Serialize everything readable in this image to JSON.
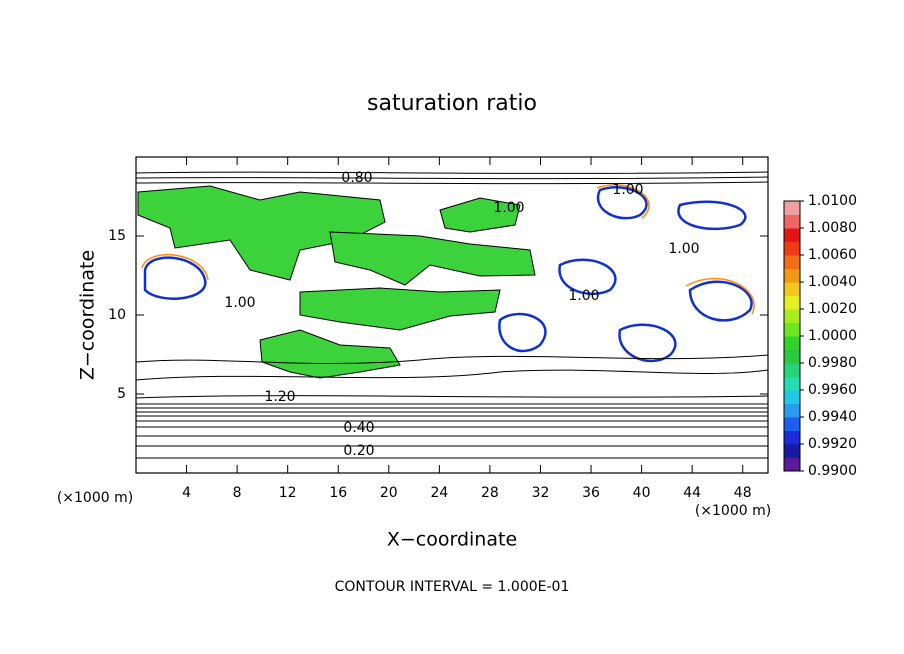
{
  "chart_data": {
    "type": "contour",
    "title": "saturation ratio",
    "x_label": "X−coordinate",
    "y_label": "Z−coordinate",
    "x_unit": "(×1000 m)",
    "y_unit": "(×1000 m)",
    "note": "CONTOUR INTERVAL = 1.000E-01",
    "xlim": [
      0,
      50
    ],
    "xticks": [
      4,
      8,
      12,
      16,
      20,
      24,
      28,
      32,
      36,
      40,
      44,
      48
    ],
    "ylim": [
      0,
      20
    ],
    "yticks": [
      5,
      10,
      15
    ],
    "contour_labels": [
      "0.80",
      "1.00",
      "1.20",
      "0.40",
      "0.20"
    ],
    "colorbar": {
      "lim": [
        0.99,
        1.01
      ],
      "ticks": [
        {
          "value": 0.99,
          "label": "0.9900"
        },
        {
          "value": 0.992,
          "label": "0.9920"
        },
        {
          "value": 0.994,
          "label": "0.9940"
        },
        {
          "value": 0.996,
          "label": "0.9960"
        },
        {
          "value": 0.998,
          "label": "0.9980"
        },
        {
          "value": 1.0,
          "label": "1.0000"
        },
        {
          "value": 1.002,
          "label": "1.0020"
        },
        {
          "value": 1.004,
          "label": "1.0040"
        },
        {
          "value": 1.006,
          "label": "1.0060"
        },
        {
          "value": 1.008,
          "label": "1.0080"
        },
        {
          "value": 1.01,
          "label": "1.0100"
        }
      ],
      "colors": [
        "#5a1a9a",
        "#1a1aa0",
        "#1a2ad8",
        "#1f5ff0",
        "#2a9cf0",
        "#1ec8e6",
        "#22dcb4",
        "#28d278",
        "#2ac83c",
        "#32d228",
        "#6ee61e",
        "#a8ee1e",
        "#e6f01e",
        "#f0c81e",
        "#f09a14",
        "#f06e14",
        "#f03c14",
        "#e61414",
        "#f06464",
        "#f0a0a0"
      ]
    }
  }
}
